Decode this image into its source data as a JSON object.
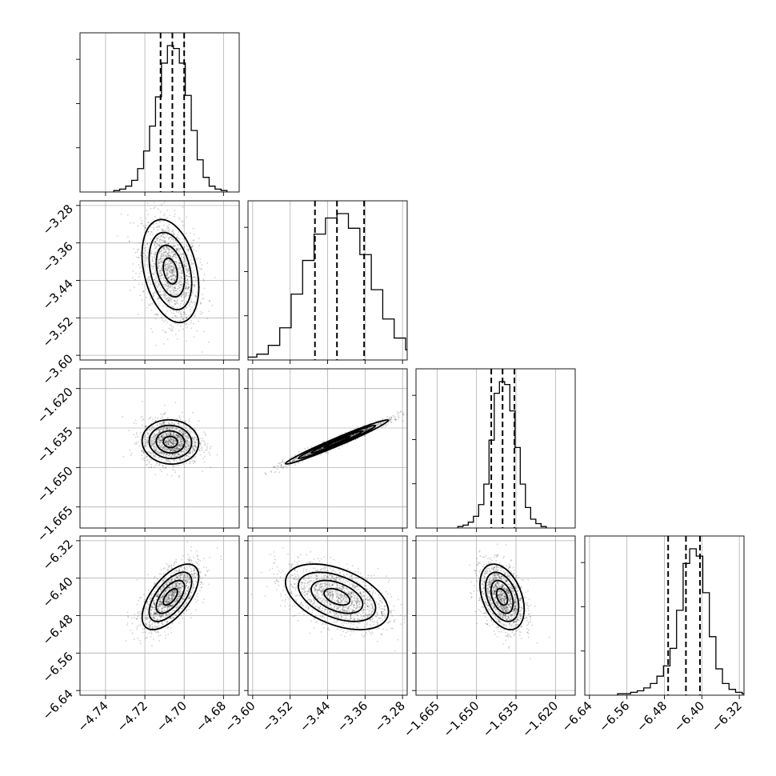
{
  "chart_data": {
    "type": "corner",
    "grid": true,
    "params": [
      {
        "ticks": [
          -4.74,
          -4.72,
          -4.7,
          -4.68
        ],
        "tick_labels": [
          "−4.74",
          "−4.72",
          "−4.70",
          "−4.68"
        ],
        "range": [
          -4.753,
          -4.672
        ],
        "quantiles": [
          -4.712,
          -4.706,
          -4.7
        ],
        "peak": -4.707,
        "sd": 0.0072
      },
      {
        "ticks": [
          -3.6,
          -3.52,
          -3.44,
          -3.36,
          -3.28
        ],
        "tick_labels": [
          "−3.60",
          "−3.52",
          "−3.44",
          "−3.36",
          "−3.28"
        ],
        "range": [
          -3.61,
          -3.27
        ],
        "quantiles": [
          -3.467,
          -3.42,
          -3.362
        ],
        "peak": -3.42,
        "sd": 0.055
      },
      {
        "ticks": [
          -1.665,
          -1.65,
          -1.635,
          -1.62
        ],
        "tick_labels": [
          "−1.665",
          "−1.650",
          "−1.635",
          "−1.620"
        ],
        "range": [
          -1.673,
          -1.6125
        ],
        "quantiles": [
          -1.6444,
          -1.6401,
          -1.6356
        ],
        "peak": -1.6403,
        "sd": 0.0042
      },
      {
        "ticks": [
          -6.64,
          -6.56,
          -6.48,
          -6.4,
          -6.32
        ],
        "tick_labels": [
          "−6.64",
          "−6.56",
          "−6.48",
          "−6.40",
          "−6.32"
        ],
        "range": [
          -6.65,
          -6.31
        ],
        "quantiles": [
          -6.472,
          -6.434,
          -6.404
        ],
        "peak": -6.44,
        "sd": 0.035
      }
    ],
    "diag_hist_counts": [
      [
        1,
        2,
        4,
        8,
        16,
        28,
        45,
        65,
        88,
        100,
        98,
        88,
        66,
        42,
        22,
        10,
        4,
        2,
        1
      ],
      [
        1,
        2,
        4,
        10,
        22,
        45,
        68,
        86,
        97,
        100,
        90,
        72,
        48,
        28,
        15,
        7,
        3,
        1
      ],
      [
        1,
        2,
        4,
        8,
        16,
        30,
        60,
        92,
        100,
        98,
        80,
        55,
        30,
        14,
        6,
        3,
        1
      ],
      [
        1,
        1,
        2,
        3,
        5,
        8,
        13,
        20,
        32,
        58,
        90,
        100,
        95,
        70,
        40,
        18,
        8,
        4,
        2,
        1
      ]
    ],
    "pair_correlations": {
      "1-0": -0.32,
      "2-0": -0.05,
      "2-1": 0.98,
      "3-0": 0.62,
      "3-1": -0.45,
      "3-2": -0.38
    }
  }
}
